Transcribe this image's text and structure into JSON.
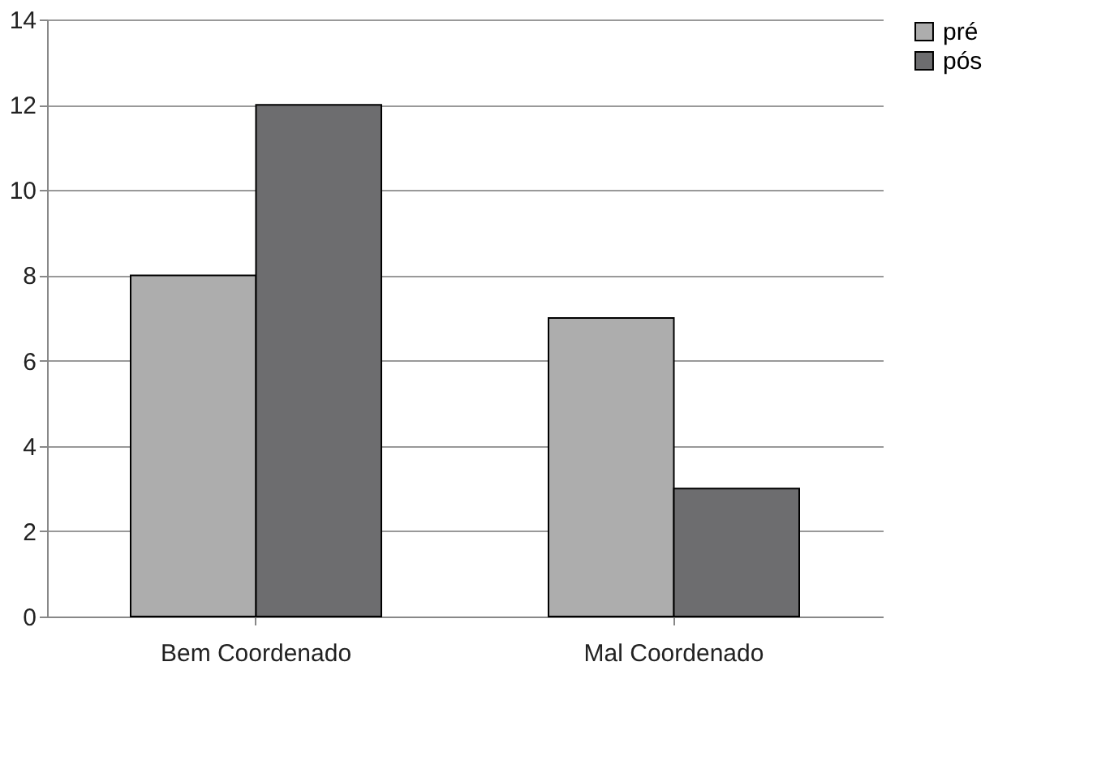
{
  "chart_data": {
    "type": "bar",
    "categories": [
      "Bem Coordenado",
      "Mal Coordenado"
    ],
    "series": [
      {
        "name": "pré",
        "color": "#adadad",
        "values": [
          8,
          7
        ]
      },
      {
        "name": "pós",
        "color": "#6d6d6f",
        "values": [
          12,
          3
        ]
      }
    ],
    "ylim": [
      0,
      14
    ],
    "yticks": [
      0,
      2,
      4,
      6,
      8,
      10,
      12,
      14
    ],
    "grid": "y",
    "legend": "right"
  }
}
